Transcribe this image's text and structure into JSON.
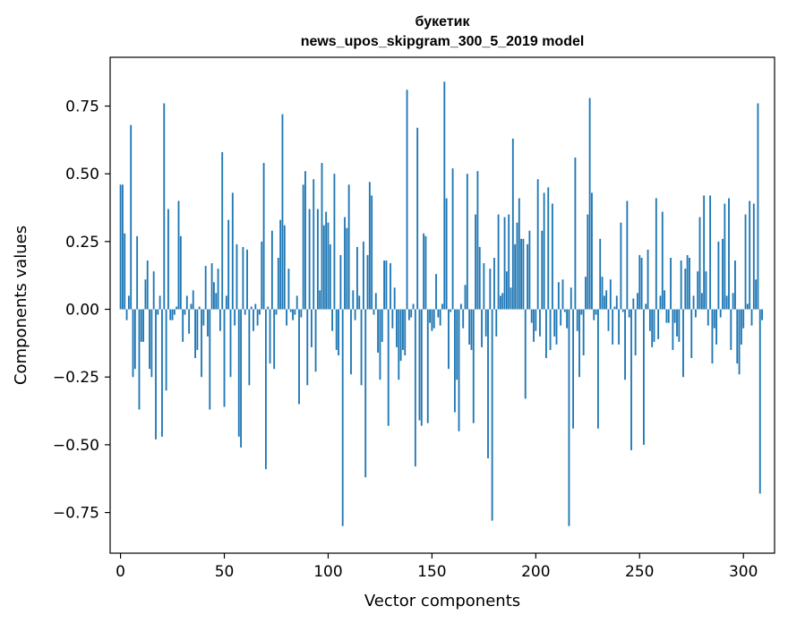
{
  "chart_data": {
    "type": "bar",
    "title": "букетик",
    "subtitle": "news_upos_skipgram_300_5_2019 model",
    "xlabel": "Vector components",
    "ylabel": "Components values",
    "xlim": [
      -5,
      315
    ],
    "ylim": [
      -0.9,
      0.93
    ],
    "xticks": [
      0,
      50,
      100,
      150,
      200,
      250,
      300
    ],
    "yticks": [
      -0.75,
      -0.5,
      -0.25,
      0.0,
      0.25,
      0.5,
      0.75
    ],
    "xtick_labels": [
      "0",
      "50",
      "100",
      "150",
      "200",
      "250",
      "300"
    ],
    "ytick_labels": [
      "−0.75",
      "−0.50",
      "−0.25",
      "0.00",
      "0.25",
      "0.50",
      "0.75"
    ],
    "bar_color": "#1f77b4",
    "grid": false,
    "values": [
      0.46,
      0.46,
      0.28,
      -0.04,
      0.05,
      0.68,
      -0.25,
      -0.22,
      0.27,
      -0.37,
      -0.12,
      -0.12,
      0.11,
      0.18,
      -0.22,
      -0.25,
      0.14,
      -0.48,
      -0.02,
      0.05,
      -0.47,
      0.76,
      -0.3,
      0.37,
      -0.04,
      -0.04,
      -0.02,
      0.01,
      0.4,
      0.27,
      -0.12,
      -0.02,
      0.05,
      -0.09,
      0.02,
      0.07,
      -0.18,
      -0.15,
      0.01,
      -0.25,
      -0.06,
      0.16,
      -0.1,
      -0.37,
      0.17,
      0.1,
      0.06,
      0.15,
      -0.08,
      0.58,
      -0.36,
      0.05,
      0.33,
      -0.25,
      0.43,
      -0.06,
      0.24,
      -0.47,
      -0.51,
      0.23,
      -0.02,
      0.22,
      -0.28,
      0.01,
      -0.08,
      0.02,
      -0.06,
      -0.02,
      0.25,
      0.54,
      -0.59,
      0.01,
      -0.2,
      0.29,
      -0.22,
      -0.02,
      0.19,
      0.33,
      0.72,
      0.31,
      -0.06,
      0.15,
      -0.01,
      -0.04,
      -0.02,
      0.05,
      -0.35,
      -0.03,
      0.46,
      0.51,
      -0.28,
      0.37,
      -0.14,
      0.48,
      -0.23,
      0.37,
      0.07,
      0.54,
      0.31,
      0.36,
      0.32,
      0.24,
      -0.08,
      0.5,
      -0.15,
      -0.17,
      0.2,
      -0.8,
      0.34,
      0.3,
      0.46,
      -0.24,
      0.07,
      -0.04,
      0.23,
      0.05,
      -0.28,
      0.25,
      -0.62,
      0.2,
      0.47,
      0.42,
      -0.02,
      0.06,
      -0.16,
      -0.26,
      -0.12,
      0.18,
      0.18,
      -0.43,
      0.17,
      -0.07,
      0.08,
      -0.14,
      -0.26,
      -0.19,
      -0.15,
      -0.17,
      0.81,
      -0.04,
      -0.03,
      0.02,
      -0.58,
      0.67,
      -0.41,
      -0.43,
      0.28,
      0.27,
      -0.42,
      -0.05,
      -0.08,
      -0.07,
      0.13,
      -0.03,
      -0.06,
      0.02,
      0.84,
      0.41,
      -0.22,
      -0.01,
      0.52,
      -0.38,
      -0.26,
      -0.45,
      0.02,
      -0.07,
      0.09,
      0.5,
      -0.13,
      -0.15,
      -0.42,
      0.35,
      0.51,
      0.23,
      -0.14,
      0.17,
      -0.1,
      -0.55,
      0.15,
      -0.78,
      0.19,
      -0.1,
      0.35,
      0.05,
      0.06,
      0.34,
      0.14,
      0.35,
      0.08,
      0.63,
      0.24,
      0.32,
      0.41,
      0.26,
      0.26,
      -0.33,
      0.24,
      0.29,
      -0.05,
      -0.12,
      -0.08,
      0.48,
      -0.1,
      0.29,
      0.43,
      -0.18,
      0.45,
      -0.15,
      0.39,
      -0.1,
      -0.13,
      0.1,
      -0.06,
      0.11,
      -0.01,
      -0.07,
      -0.8,
      0.08,
      -0.44,
      0.56,
      -0.08,
      -0.25,
      -0.02,
      -0.17,
      0.12,
      0.35,
      0.78,
      0.43,
      -0.04,
      -0.02,
      -0.44,
      0.26,
      0.12,
      0.05,
      0.07,
      -0.08,
      0.11,
      -0.13,
      0.01,
      0.05,
      -0.13,
      0.32,
      -0.01,
      -0.26,
      0.4,
      -0.03,
      -0.52,
      0.04,
      -0.17,
      0.06,
      0.2,
      0.19,
      -0.5,
      0.02,
      0.22,
      -0.08,
      -0.14,
      -0.12,
      0.41,
      -0.11,
      0.05,
      0.36,
      0.07,
      -0.05,
      -0.05,
      0.19,
      -0.15,
      -0.05,
      -0.1,
      -0.12,
      0.18,
      -0.25,
      0.15,
      0.2,
      0.19,
      -0.18,
      0.05,
      -0.03,
      0.14,
      0.34,
      0.06,
      0.42,
      0.14,
      -0.06,
      0.42,
      -0.2,
      -0.07,
      -0.13,
      0.25,
      -0.03,
      0.26,
      0.39,
      0.05,
      0.41,
      -0.15,
      0.06,
      0.18,
      -0.2,
      -0.24,
      -0.13,
      -0.07,
      0.35,
      0.02,
      0.4,
      -0.06,
      0.39,
      0.11,
      0.76,
      -0.68,
      -0.04
    ]
  }
}
